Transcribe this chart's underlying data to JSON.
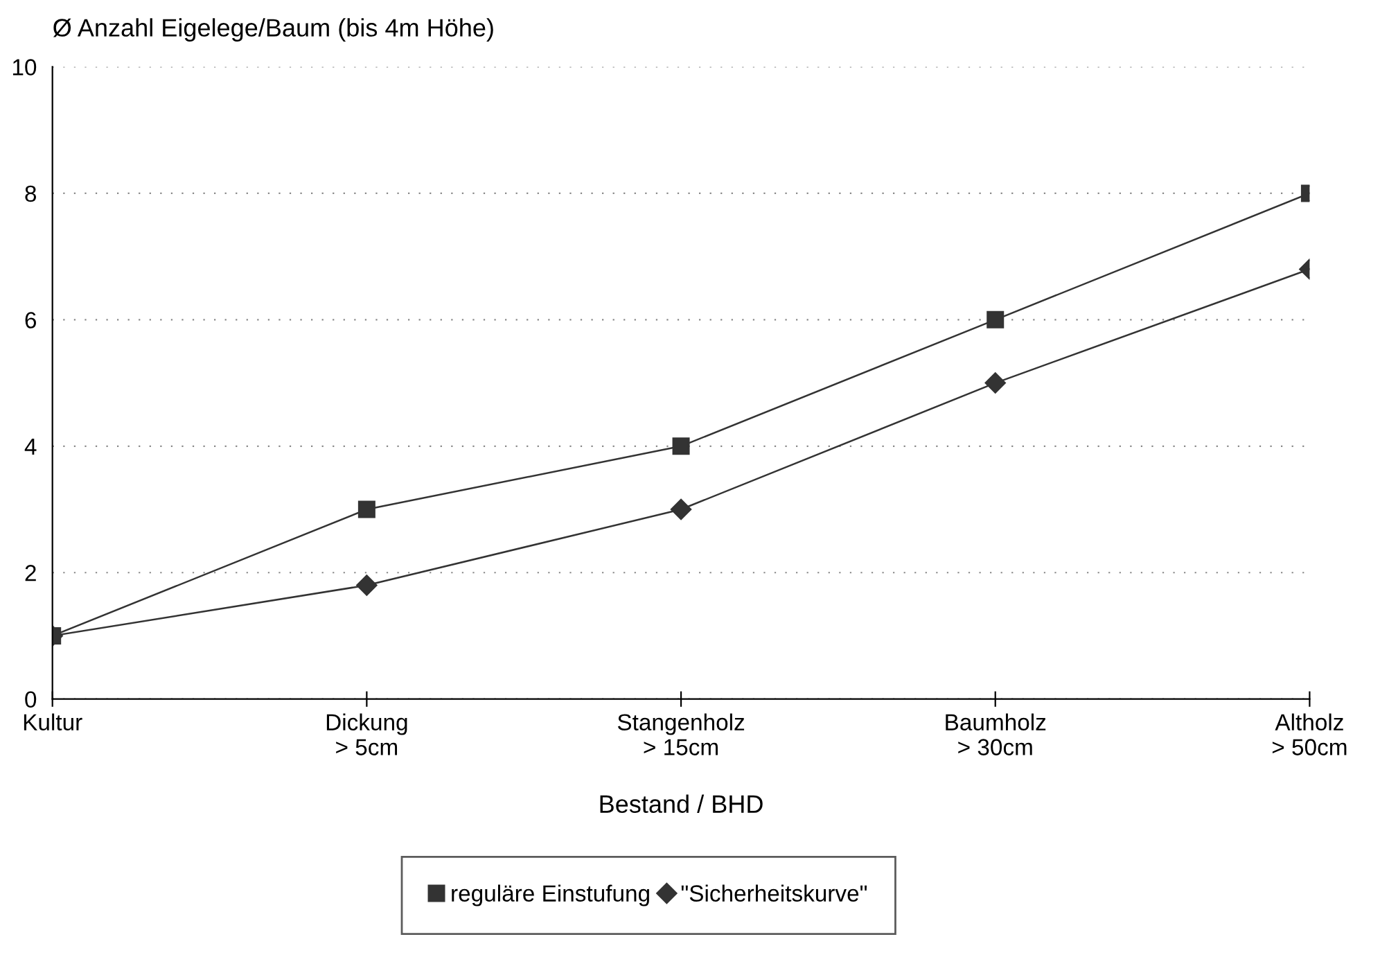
{
  "chart_data": {
    "type": "line",
    "ylabel": "Ø Anzahl Eigelege/Baum (bis 4m Höhe)",
    "xlabel": "Bestand / BHD",
    "categories": [
      "Kultur",
      "Dickung\n> 5cm",
      "Stangenholz\n> 15cm",
      "Baumholz\n> 30cm",
      "Altholz\n> 50cm"
    ],
    "series": [
      {
        "name": "reguläre Einstufung",
        "color": "#333333",
        "marker": "square",
        "values": [
          1,
          3,
          4,
          6,
          8
        ]
      },
      {
        "name": "\"Sicherheitskurve\"",
        "color": "#333333",
        "marker": "diamond",
        "values": [
          1,
          1.8,
          3,
          5,
          6.8
        ]
      }
    ],
    "ylim": [
      0,
      10
    ],
    "yticks": [
      0,
      2,
      4,
      6,
      8,
      10
    ],
    "grid": "y",
    "legend": "bottom",
    "line_style": "solid"
  }
}
